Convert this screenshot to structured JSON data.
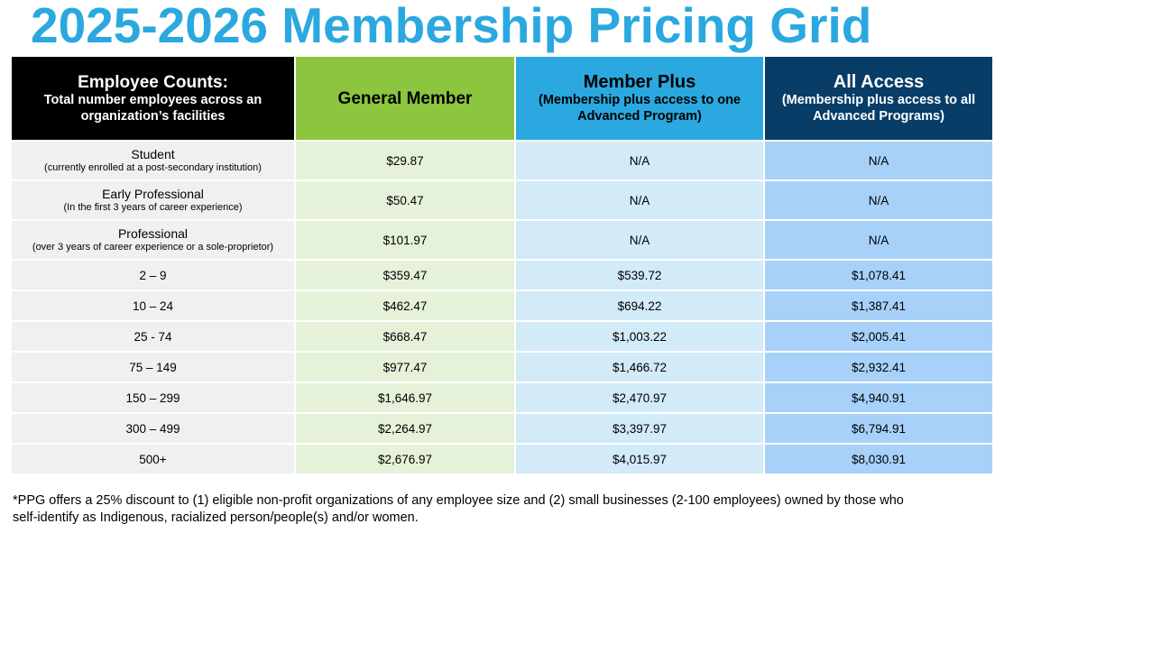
{
  "title": "2025-2026 Membership Pricing Grid",
  "colors": {
    "title": "#2aa8df",
    "header_black": "#000000",
    "header_green": "#8dc53f",
    "header_blue": "#2aa8df",
    "header_navy": "#073d67"
  },
  "headers": [
    {
      "main": "Employee Counts:",
      "sub": "Total number employees across an organization’s facilities"
    },
    {
      "main": "General Member",
      "sub": ""
    },
    {
      "main": "Member Plus",
      "sub": "(Membership plus access to one Advanced Program)"
    },
    {
      "main": "All Access",
      "sub": "(Membership plus access to all Advanced Programs)"
    }
  ],
  "rows": [
    {
      "label": "Student",
      "sublabel": "(currently enrolled at a post-secondary institution)",
      "general": "$29.87",
      "plus": "N/A",
      "all": "N/A"
    },
    {
      "label": "Early Professional",
      "sublabel": "(In the first 3 years of career experience)",
      "general": "$50.47",
      "plus": "N/A",
      "all": "N/A"
    },
    {
      "label": "Professional",
      "sublabel": "(over 3 years of career experience or a sole-proprietor)",
      "general": "$101.97",
      "plus": "N/A",
      "all": "N/A"
    },
    {
      "label": "2 – 9",
      "sublabel": "",
      "general": "$359.47",
      "plus": "$539.72",
      "all": "$1,078.41"
    },
    {
      "label": "10 – 24",
      "sublabel": "",
      "general": "$462.47",
      "plus": "$694.22",
      "all": "$1,387.41"
    },
    {
      "label": "25 - 74",
      "sublabel": "",
      "general": "$668.47",
      "plus": "$1,003.22",
      "all": "$2,005.41"
    },
    {
      "label": "75 – 149",
      "sublabel": "",
      "general": "$977.47",
      "plus": "$1,466.72",
      "all": "$2,932.41"
    },
    {
      "label": "150 – 299",
      "sublabel": "",
      "general": "$1,646.97",
      "plus": "$2,470.97",
      "all": "$4,940.91"
    },
    {
      "label": "300 – 499",
      "sublabel": "",
      "general": "$2,264.97",
      "plus": "$3,397.97",
      "all": "$6,794.91"
    },
    {
      "label": "500+",
      "sublabel": "",
      "general": "$2,676.97",
      "plus": "$4,015.97",
      "all": "$8,030.91"
    }
  ],
  "footnote": "*PPG offers a 25% discount to (1) eligible non-profit organizations of any employee size and (2) small businesses (2-100 employees) owned by those who self-identify as Indigenous, racialized person/people(s) and/or women."
}
